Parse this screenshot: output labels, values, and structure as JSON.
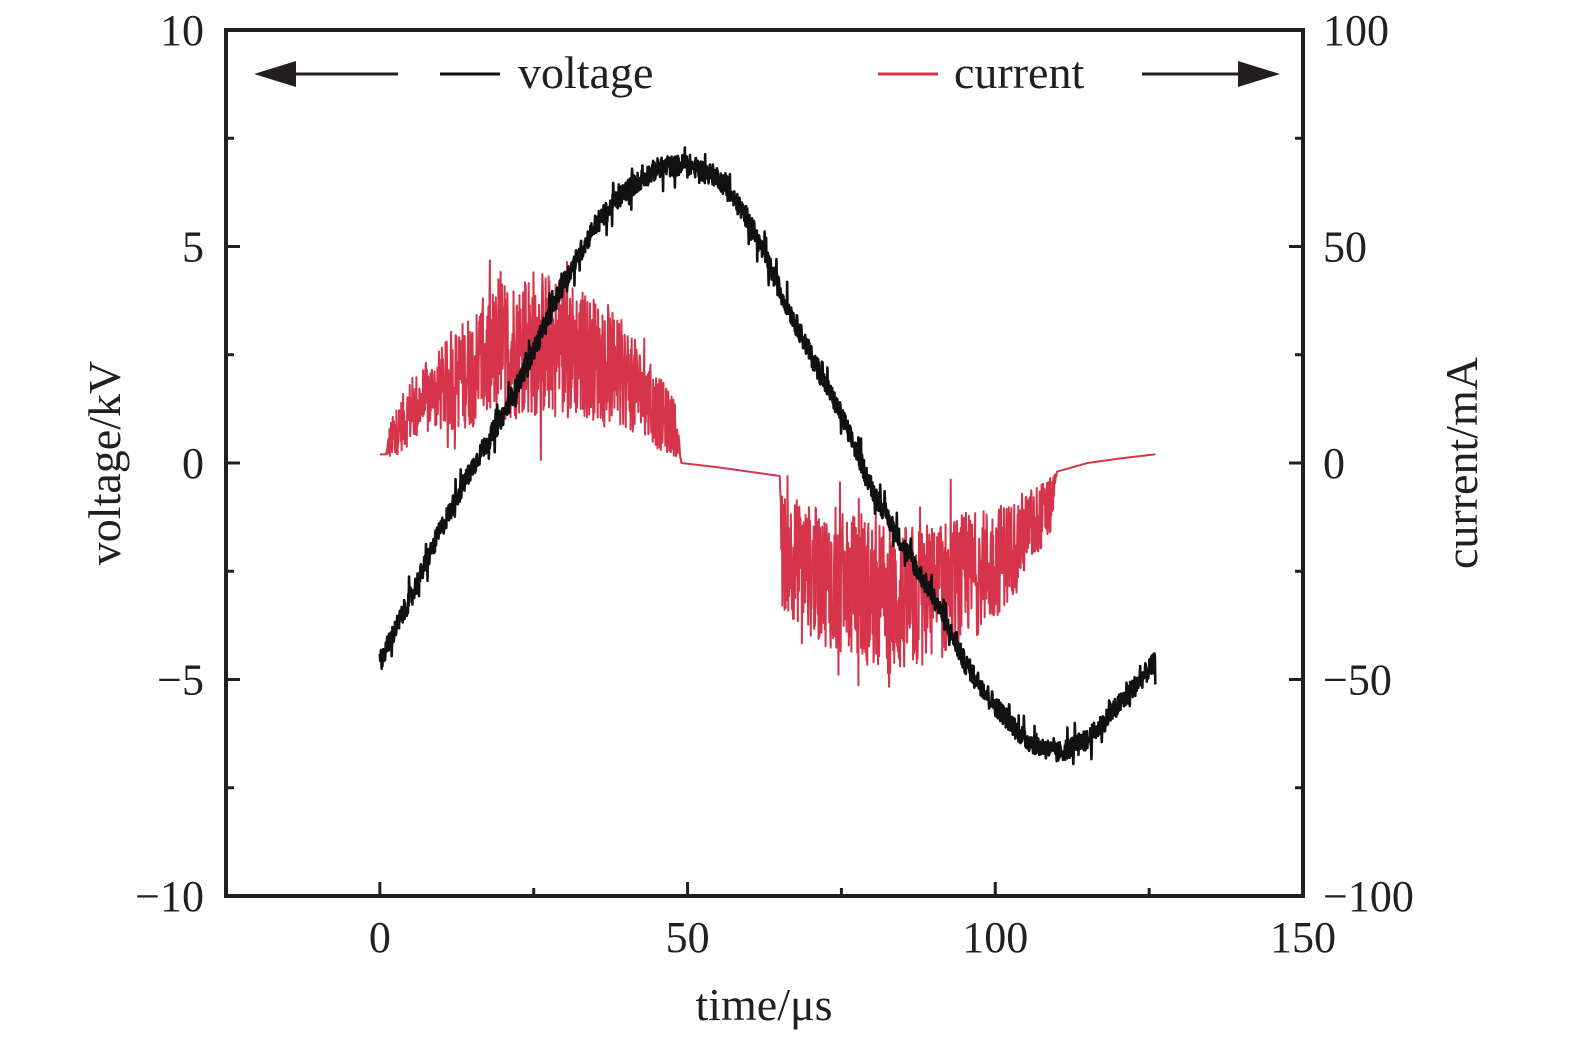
{
  "chart_data": {
    "type": "line",
    "title": "",
    "xlabel": "time/μs",
    "ylabel_left": "voltage/kV",
    "ylabel_right": "current/mA",
    "xlim": [
      -25,
      150
    ],
    "ylim_left": [
      -10,
      10
    ],
    "ylim_right": [
      -100,
      100
    ],
    "x_ticks": [
      0,
      50,
      100,
      150
    ],
    "y_ticks_left": [
      -10,
      -5,
      0,
      5,
      10
    ],
    "y_ticks_right": [
      -100,
      -50,
      0,
      50,
      100
    ],
    "grid": false,
    "legend_position": "top",
    "colors": {
      "voltage": "#111111",
      "current": "#d5344a",
      "axis": "#231f20"
    },
    "series": [
      {
        "name": "voltage",
        "axis": "left",
        "color": "#111111",
        "noise_amplitude": 0.35,
        "x": [
          0,
          5,
          10,
          15,
          20,
          25,
          30,
          35,
          40,
          45,
          50,
          55,
          60,
          65,
          70,
          75,
          80,
          85,
          90,
          95,
          100,
          105,
          110,
          115,
          120,
          126
        ],
        "y": [
          -4.6,
          -3.1,
          -1.5,
          -0.1,
          1.1,
          2.6,
          4.2,
          5.5,
          6.3,
          6.8,
          6.9,
          6.6,
          5.6,
          4.0,
          2.5,
          1.1,
          -0.6,
          -1.9,
          -3.1,
          -4.6,
          -5.6,
          -6.4,
          -6.7,
          -6.4,
          -5.6,
          -4.6
        ]
      },
      {
        "name": "current",
        "axis": "right",
        "color": "#d5344a",
        "x": [
          0,
          1,
          1.6,
          5,
          10,
          15,
          20,
          25,
          30,
          35,
          40,
          45,
          48,
          49,
          55,
          60,
          65,
          65.3,
          70,
          75,
          80,
          85,
          90,
          95,
          100,
          105,
          109,
          110,
          115,
          120,
          126
        ],
        "y": [
          2,
          2,
          5,
          12,
          17,
          22,
          26,
          28,
          27,
          24,
          20,
          12,
          8,
          0,
          -1,
          -2,
          -3,
          -20,
          -25,
          -28,
          -30,
          -32,
          -30,
          -27,
          -23,
          -16,
          -10,
          -2,
          0,
          1,
          2
        ],
        "noise_amplitude": [
          0,
          0,
          8,
          14,
          18,
          25,
          30,
          32,
          30,
          26,
          22,
          16,
          12,
          0,
          0,
          0,
          0,
          25,
          28,
          30,
          32,
          32,
          30,
          28,
          24,
          18,
          12,
          0,
          0,
          0,
          0
        ]
      }
    ]
  },
  "legend": {
    "voltage_label": "voltage",
    "current_label": "current"
  }
}
